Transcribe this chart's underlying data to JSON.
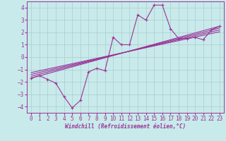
{
  "background_color": "#c8eaea",
  "grid_color": "#aacccc",
  "line_color": "#993399",
  "xlabel": "Windchill (Refroidissement éolien,°C)",
  "xlim": [
    -0.5,
    23.5
  ],
  "ylim": [
    -4.5,
    4.5
  ],
  "xticks": [
    0,
    1,
    2,
    3,
    4,
    5,
    6,
    7,
    8,
    9,
    10,
    11,
    12,
    13,
    14,
    15,
    16,
    17,
    18,
    19,
    20,
    21,
    22,
    23
  ],
  "yticks": [
    -4,
    -3,
    -2,
    -1,
    0,
    1,
    2,
    3,
    4
  ],
  "main_x": [
    0,
    1,
    2,
    3,
    4,
    5,
    6,
    7,
    8,
    9,
    10,
    11,
    12,
    13,
    14,
    15,
    16,
    17,
    18,
    19,
    20,
    21,
    22,
    23
  ],
  "main_y": [
    -1.7,
    -1.5,
    -1.8,
    -2.1,
    -3.2,
    -4.1,
    -3.5,
    -1.2,
    -0.9,
    -1.1,
    1.6,
    1.0,
    1.0,
    3.4,
    3.0,
    4.2,
    4.2,
    2.3,
    1.5,
    1.5,
    1.6,
    1.4,
    2.2,
    2.5
  ],
  "line2_x": [
    0,
    23
  ],
  "line2_y": [
    -1.7,
    2.5
  ],
  "line3_x": [
    0,
    23
  ],
  "line3_y": [
    -1.55,
    2.35
  ],
  "line4_x": [
    0,
    23
  ],
  "line4_y": [
    -1.4,
    2.2
  ],
  "line5_x": [
    0,
    23
  ],
  "line5_y": [
    -1.25,
    2.05
  ],
  "xlabel_fontsize": 5.5,
  "tick_fontsize": 5.5,
  "lw": 0.8
}
